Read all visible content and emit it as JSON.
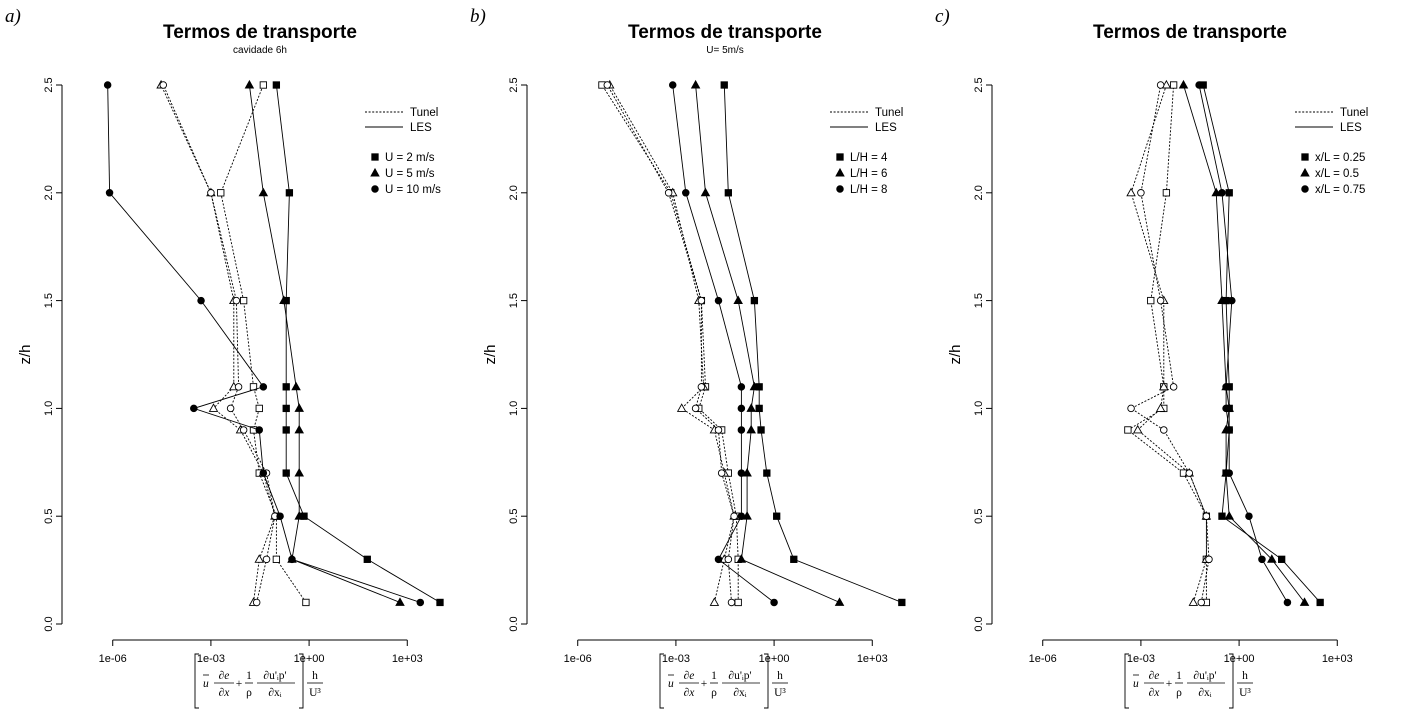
{
  "panels": [
    {
      "label": "a)",
      "title": "Termos de transporte",
      "subtitle": "cavidade 6h",
      "xlabel_parts": {
        "u": "u",
        "dedx_num": "∂e",
        "dedx_den": "∂x",
        "one": "1",
        "rho": "ρ",
        "dup_num": "∂u'ᵢp'",
        "dup_den": "∂xᵢ",
        "h": "h",
        "u3": "U³"
      },
      "legend": {
        "line_labels": [
          "Tunel",
          "LES"
        ],
        "marker_labels": [
          "U = 2 m/s",
          "U = 5 m/s",
          "U = 10 m/s"
        ]
      }
    },
    {
      "label": "b)",
      "title": "Termos de transporte",
      "subtitle": "U= 5m/s",
      "xlabel_parts": {
        "u": "u",
        "dedx_num": "∂e",
        "dedx_den": "∂x",
        "one": "1",
        "rho": "ρ",
        "dup_num": "∂u'ᵢp'",
        "dup_den": "∂xᵢ",
        "h": "h",
        "u3": "U³"
      },
      "legend": {
        "line_labels": [
          "Tunel",
          "LES"
        ],
        "marker_labels": [
          "L/H = 4",
          "L/H = 6",
          "L/H = 8"
        ]
      }
    },
    {
      "label": "c)",
      "title": "Termos de transporte",
      "subtitle": "",
      "xlabel_parts": {
        "u": "u",
        "dedx_num": "∂e",
        "dedx_den": "∂x",
        "one": "1",
        "rho": "ρ",
        "dup_num": "∂u'ᵢp'",
        "dup_den": "∂xᵢ",
        "h": "h",
        "u3": "U³"
      },
      "legend": {
        "line_labels": [
          "Tunel",
          "LES"
        ],
        "marker_labels": [
          "x/L = 0.25",
          "x/L = 0.5",
          "x/L = 0.75"
        ]
      }
    }
  ],
  "chart_data": [
    {
      "type": "line",
      "title": "Termos de transporte",
      "subtitle": "cavidade 6h",
      "ylabel": "z/h",
      "xscale": "log",
      "xlim": [
        1e-07,
        10000.0
      ],
      "ylim": [
        0,
        2.5
      ],
      "xticks": [
        "1e-06",
        "1e-03",
        "1e+00",
        "1e+03"
      ],
      "yticks": [
        "0.0",
        "0.5",
        "1.0",
        "1.5",
        "2.0",
        "2.5"
      ],
      "legend_position": "top-right",
      "z": [
        0.1,
        0.3,
        0.5,
        0.7,
        0.9,
        1.0,
        1.1,
        1.5,
        2.0,
        2.5
      ],
      "series": [
        {
          "name": "U = 2 m/s",
          "source": "Tunel",
          "marker": "square",
          "x": [
            0.8,
            0.1,
            0.1,
            0.03,
            0.02,
            0.03,
            0.02,
            0.01,
            0.002,
            0.04
          ]
        },
        {
          "name": "U = 5 m/s",
          "source": "Tunel",
          "marker": "triangle",
          "x": [
            0.02,
            0.03,
            0.09,
            0.04,
            0.008,
            0.0012,
            0.005,
            0.005,
            0.001,
            3e-05
          ]
        },
        {
          "name": "U = 10 m/s",
          "source": "Tunel",
          "marker": "circle",
          "x": [
            0.025,
            0.05,
            0.09,
            0.05,
            0.01,
            0.004,
            0.007,
            0.006,
            0.001,
            3.5e-05
          ]
        },
        {
          "name": "U = 2 m/s",
          "source": "LES",
          "marker": "square",
          "x": 10000,
          "xs": [
            10000,
            60,
            0.7,
            0.2,
            0.2,
            0.2,
            0.2,
            0.2,
            0.25,
            0.1
          ]
        },
        {
          "name": "U = 5 m/s",
          "source": "LES",
          "marker": "triangle",
          "x": [
            600,
            0.3,
            0.5,
            0.5,
            0.5,
            0.5,
            0.4,
            0.17,
            0.04,
            0.015
          ]
        },
        {
          "name": "U = 10 m/s",
          "source": "LES",
          "marker": "circle",
          "x": [
            2500,
            0.3,
            0.13,
            0.04,
            0.03,
            0.0003,
            0.04,
            0.0005,
            8e-07,
            7e-07
          ]
        }
      ]
    },
    {
      "type": "line",
      "title": "Termos de transporte",
      "subtitle": "U= 5m/s",
      "ylabel": "z/h",
      "xscale": "log",
      "xlim": [
        1e-07,
        10000.0
      ],
      "ylim": [
        0,
        2.5
      ],
      "xticks": [
        "1e-06",
        "1e-03",
        "1e+00",
        "1e+03"
      ],
      "yticks": [
        "0.0",
        "0.5",
        "1.0",
        "1.5",
        "2.0",
        "2.5"
      ],
      "legend_position": "top-right",
      "z": [
        0.1,
        0.3,
        0.5,
        0.7,
        0.9,
        1.0,
        1.1,
        1.5,
        2.0,
        2.5
      ],
      "series": [
        {
          "name": "L/H = 4",
          "source": "Tunel",
          "marker": "square",
          "x": [
            0.08,
            0.08,
            0.07,
            0.04,
            0.025,
            0.005,
            0.008,
            0.006,
            0.0007,
            5.5e-06
          ]
        },
        {
          "name": "L/H = 6",
          "source": "Tunel",
          "marker": "triangle",
          "x": [
            0.015,
            0.03,
            0.06,
            0.03,
            0.015,
            0.0015,
            0.007,
            0.005,
            0.0008,
            9.5e-06
          ]
        },
        {
          "name": "L/H = 8",
          "source": "Tunel",
          "marker": "circle",
          "x": [
            0.05,
            0.04,
            0.06,
            0.025,
            0.02,
            0.004,
            0.006,
            0.006,
            0.0006,
            8e-06
          ]
        },
        {
          "name": "L/H = 4",
          "source": "LES",
          "marker": "square",
          "x": [
            8000,
            4,
            1.2,
            0.6,
            0.4,
            0.35,
            0.35,
            0.25,
            0.04,
            0.03
          ]
        },
        {
          "name": "L/H = 6",
          "source": "LES",
          "marker": "triangle",
          "x": [
            100,
            0.1,
            0.15,
            0.15,
            0.2,
            0.2,
            0.25,
            0.08,
            0.008,
            0.004
          ]
        },
        {
          "name": "L/H = 8",
          "source": "LES",
          "marker": "circle",
          "x": [
            1,
            0.02,
            0.1,
            0.1,
            0.1,
            0.1,
            0.1,
            0.02,
            0.002,
            0.0008
          ]
        }
      ]
    },
    {
      "type": "line",
      "title": "Termos de transporte",
      "subtitle": "",
      "ylabel": "z/h",
      "xscale": "log",
      "xlim": [
        1e-07,
        10000.0
      ],
      "ylim": [
        0,
        2.5
      ],
      "xticks": [
        "1e-06",
        "1e-03",
        "1e+00",
        "1e+03"
      ],
      "yticks": [
        "0.0",
        "0.5",
        "1.0",
        "1.5",
        "2.0",
        "2.5"
      ],
      "legend_position": "top-right",
      "z": [
        0.1,
        0.3,
        0.5,
        0.7,
        0.9,
        1.0,
        1.1,
        1.5,
        2.0,
        2.5
      ],
      "series": [
        {
          "name": "x/L = 0.25",
          "source": "Tunel",
          "marker": "square",
          "x": [
            0.1,
            0.1,
            0.1,
            0.02,
            0.0004,
            0.005,
            0.005,
            0.002,
            0.006,
            0.01
          ]
        },
        {
          "name": "x/L = 0.5",
          "source": "Tunel",
          "marker": "triangle",
          "x": [
            0.04,
            0.1,
            0.1,
            0.03,
            0.0008,
            0.004,
            0.005,
            0.005,
            0.0005,
            0.006
          ]
        },
        {
          "name": "x/L = 0.75",
          "source": "Tunel",
          "marker": "circle",
          "x": [
            0.07,
            0.12,
            0.1,
            0.03,
            0.005,
            0.0005,
            0.01,
            0.004,
            0.001,
            0.004
          ]
        },
        {
          "name": "x/L = 0.25",
          "source": "LES",
          "marker": "square",
          "x": [
            300,
            20,
            0.3,
            0.4,
            0.5,
            0.5,
            0.5,
            0.4,
            0.5,
            0.08
          ]
        },
        {
          "name": "x/L = 0.5",
          "source": "LES",
          "marker": "triangle",
          "x": [
            100,
            10,
            0.5,
            0.4,
            0.4,
            0.5,
            0.4,
            0.3,
            0.2,
            0.02
          ]
        },
        {
          "name": "x/L = 0.75",
          "source": "LES",
          "marker": "circle",
          "x": [
            30,
            5,
            2,
            0.5,
            0.5,
            0.4,
            0.4,
            0.6,
            0.3,
            0.06
          ]
        }
      ]
    }
  ]
}
